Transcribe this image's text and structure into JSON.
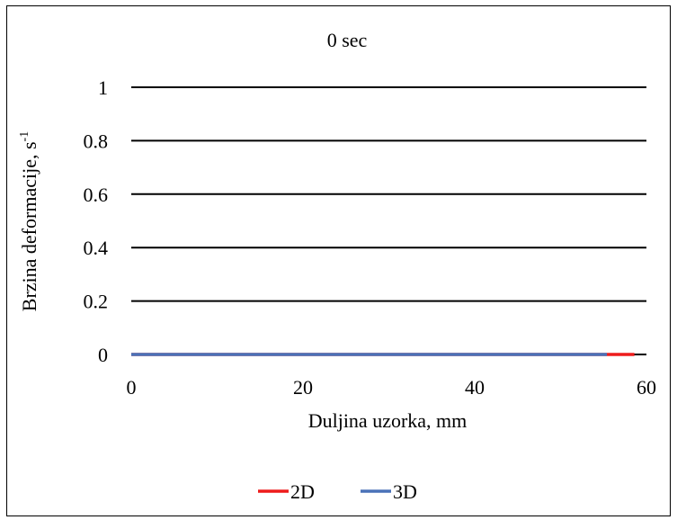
{
  "chart_data": {
    "type": "line",
    "title": "0 sec",
    "xlabel": "Duljina uzorka, mm",
    "ylabel": "Brzina deformacije, s",
    "ylabel_superscript": "-1",
    "xlim": [
      0,
      60
    ],
    "ylim": [
      0,
      1
    ],
    "x_ticks": [
      "0",
      "20",
      "40",
      "60"
    ],
    "y_ticks": [
      "0",
      "0.2",
      "0.4",
      "0.6",
      "0.8",
      "1"
    ],
    "grid": true,
    "legend_position": "bottom",
    "series": [
      {
        "name": "2D",
        "color": "#ee1c1c",
        "x": [
          0,
          58.6
        ],
        "y": [
          0,
          0
        ]
      },
      {
        "name": "3D",
        "color": "#4a72b8",
        "x": [
          0,
          55.4
        ],
        "y": [
          0,
          0
        ]
      }
    ]
  }
}
